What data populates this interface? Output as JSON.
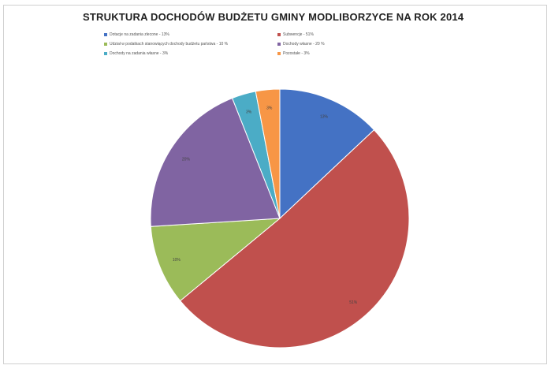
{
  "chart_data": {
    "type": "pie",
    "title": "STRUKTURA DOCHODÓW BUDŻETU GMINY MODLIBORZYCE NA ROK 2014",
    "legend_position": "top",
    "start_angle_deg": 0,
    "direction": "clockwise",
    "slices": [
      {
        "label": "Dotacje na zadania zlecone - 13%",
        "value": 13,
        "data_label": "13%",
        "color": "#4472c4"
      },
      {
        "label": "Subwencje - 51%",
        "value": 51,
        "data_label": "51%",
        "color": "#c0504d"
      },
      {
        "label": "Udział w podatkach stanowiących dochody budżetu państwa - 10 %",
        "value": 10,
        "data_label": "10%",
        "color": "#9bbb59"
      },
      {
        "label": "Dochody własne - 20 %",
        "value": 20,
        "data_label": "20%",
        "color": "#8064a2"
      },
      {
        "label": "Dochody na zadania własne - 3%",
        "value": 3,
        "data_label": "3%",
        "color": "#4bacc6"
      },
      {
        "label": "Pozostałe - 3%",
        "value": 3,
        "data_label": "3%",
        "color": "#f79646"
      }
    ]
  }
}
